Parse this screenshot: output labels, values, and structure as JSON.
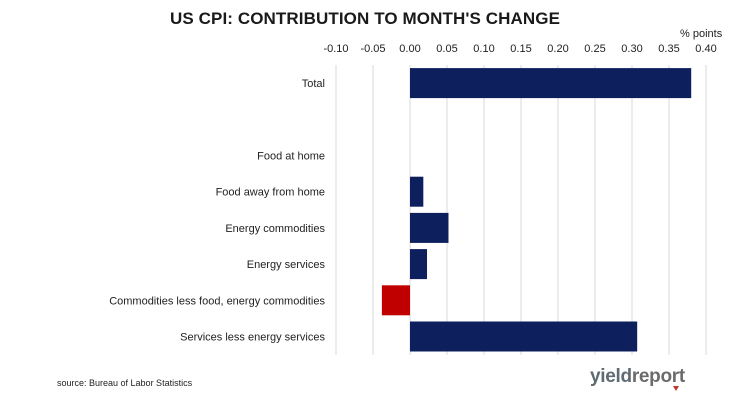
{
  "title": "US CPI: CONTRIBUTION TO MONTH'S CHANGE",
  "unit_label": "% points",
  "source": "source: Bureau of Labor Statistics",
  "logo": {
    "part1": "yield",
    "part2": "report"
  },
  "colors": {
    "positive": "#0d1f5c",
    "negative": "#c00000",
    "grid": "#d9d9d9"
  },
  "chart_data": {
    "type": "bar",
    "orientation": "horizontal",
    "title": "US CPI: CONTRIBUTION TO MONTH'S CHANGE",
    "xlabel": "% points",
    "ylabel": "",
    "xlim": [
      -0.1,
      0.4
    ],
    "xticks": [
      "-0.10",
      "-0.05",
      "0.00",
      "0.05",
      "0.10",
      "0.15",
      "0.20",
      "0.25",
      "0.30",
      "0.35",
      "0.40"
    ],
    "xtick_values": [
      -0.1,
      -0.05,
      0.0,
      0.05,
      0.1,
      0.15,
      0.2,
      0.25,
      0.3,
      0.35,
      0.4
    ],
    "grid": true,
    "categories": [
      "Total",
      "",
      "Food at home",
      "Food away from home",
      "Energy commodities",
      "Energy services",
      "Commodities less food, energy commodities",
      "Services less energy services"
    ],
    "values": [
      0.38,
      null,
      0.0,
      0.018,
      0.052,
      0.023,
      -0.038,
      0.307
    ]
  }
}
